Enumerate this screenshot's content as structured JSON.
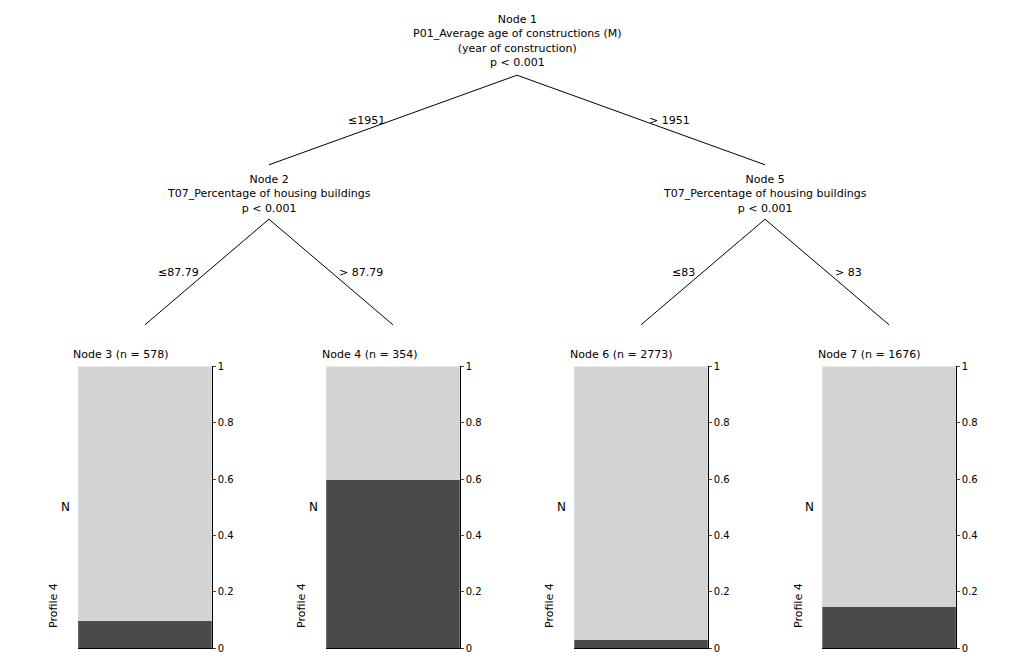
{
  "chart_data": [
    {
      "type": "bar",
      "title": "Node 3 (n = 578)",
      "categories": [
        null
      ],
      "series": [
        {
          "color": "#4a4a4a",
          "values": [
            0.095
          ]
        },
        {
          "color": "#d3d3d3",
          "values": [
            0.905
          ]
        }
      ],
      "stacked": true,
      "ylim": [
        0,
        1
      ],
      "yticks": [
        0,
        0.2,
        0.4,
        0.6,
        0.8,
        1
      ],
      "ylabel": "N",
      "xlabel": "Profile 4",
      "grid": false,
      "tick_labels": "y"
    },
    {
      "type": "bar",
      "title": "Node 4 (n = 354)",
      "categories": [
        null
      ],
      "series": [
        {
          "color": "#4a4a4a",
          "values": [
            0.595
          ]
        },
        {
          "color": "#d3d3d3",
          "values": [
            0.405
          ]
        }
      ],
      "stacked": true,
      "ylim": [
        0,
        1
      ],
      "yticks": [
        0,
        0.2,
        0.4,
        0.6,
        0.8,
        1
      ],
      "ylabel": "N",
      "xlabel": "Profile 4",
      "grid": false,
      "tick_labels": "y"
    },
    {
      "type": "bar",
      "title": "Node 6 (n = 2773)",
      "categories": [
        null
      ],
      "series": [
        {
          "color": "#4a4a4a",
          "values": [
            0.028
          ]
        },
        {
          "color": "#d3d3d3",
          "values": [
            0.972
          ]
        }
      ],
      "stacked": true,
      "ylim": [
        0,
        1
      ],
      "yticks": [
        0,
        0.2,
        0.4,
        0.6,
        0.8,
        1
      ],
      "ylabel": "N",
      "xlabel": "Profile 4",
      "grid": false,
      "tick_labels": "y"
    },
    {
      "type": "bar",
      "title": "Node 7 (n = 1676)",
      "categories": [
        null
      ],
      "series": [
        {
          "color": "#4a4a4a",
          "values": [
            0.145
          ]
        },
        {
          "color": "#d3d3d3",
          "values": [
            0.855
          ]
        }
      ],
      "stacked": true,
      "ylim": [
        0,
        1
      ],
      "yticks": [
        0,
        0.2,
        0.4,
        0.6,
        0.8,
        1
      ],
      "ylabel": "N",
      "xlabel": "Profile 4",
      "grid": false,
      "tick_labels": "y"
    }
  ],
  "annotations": [
    "Node 1\nP01_Average age of constructions (M)\n(year of construction)\np < 0.001",
    "Node 2\nT07_Percentage of housing buildings\np < 0.001",
    "Node 5\nT07_Percentage of housing buildings\np < 0.001",
    "≤1951",
    "> 1951",
    "≤87.79",
    "> 87.79",
    "≤83",
    "> 83"
  ]
}
